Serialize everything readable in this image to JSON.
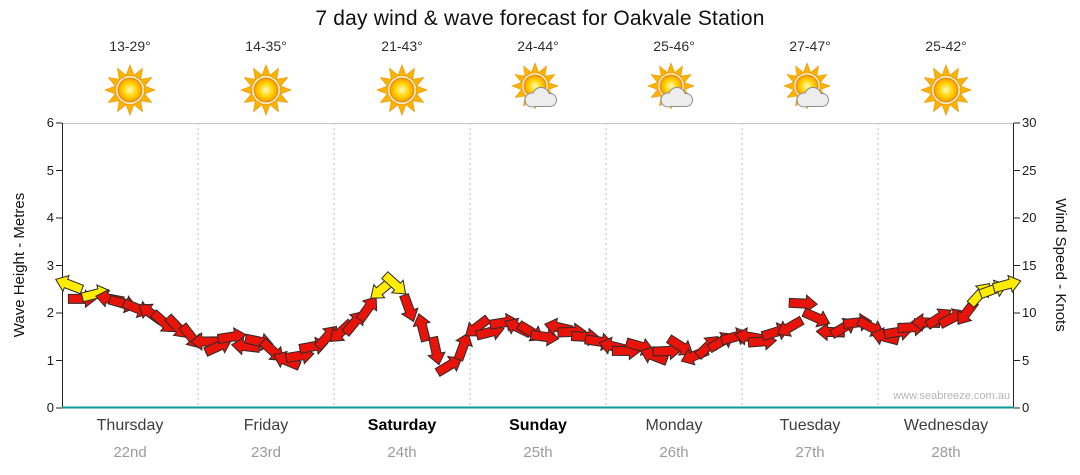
{
  "title": "7 day wind & wave forecast for Oakvale Station",
  "watermark": "www.seabreeze.com.au",
  "axes": {
    "left": {
      "title": "Wave Height - Metres",
      "ticks": [
        0,
        1,
        2,
        3,
        4,
        5,
        6
      ]
    },
    "right": {
      "title": "Wind Speed - Knots",
      "ticks": [
        0,
        5,
        10,
        15,
        20,
        25,
        30
      ]
    }
  },
  "days": [
    {
      "name": "Thursday",
      "date": "22nd",
      "temp": "13-29°",
      "icon": "sunny",
      "weekend": false
    },
    {
      "name": "Friday",
      "date": "23rd",
      "temp": "14-35°",
      "icon": "sunny",
      "weekend": false
    },
    {
      "name": "Saturday",
      "date": "24th",
      "temp": "21-43°",
      "icon": "sunny",
      "weekend": true
    },
    {
      "name": "Sunday",
      "date": "25th",
      "temp": "24-44°",
      "icon": "partly-cloudy",
      "weekend": true
    },
    {
      "name": "Monday",
      "date": "26th",
      "temp": "25-46°",
      "icon": "partly-cloudy",
      "weekend": false
    },
    {
      "name": "Tuesday",
      "date": "27th",
      "temp": "27-47°",
      "icon": "partly-cloudy",
      "weekend": false
    },
    {
      "name": "Wednesday",
      "date": "28th",
      "temp": "25-42°",
      "icon": "sunny",
      "weekend": false
    }
  ],
  "chart_data": {
    "type": "line",
    "marker": "wind-direction-arrow",
    "title": "7 day wind & wave forecast for Oakvale Station",
    "ylabel_left": "Wave Height - Metres",
    "ylabel_right": "Wind Speed - Knots",
    "ylim_left_metres": [
      0,
      6
    ],
    "ylim_right_knots": [
      0,
      30
    ],
    "x_categories": [
      "Thursday 22nd",
      "Friday 23rd",
      "Saturday 24th",
      "Sunday 25th",
      "Monday 26th",
      "Tuesday 27th",
      "Wednesday 28th"
    ],
    "samples_per_day": 10,
    "series": [
      {
        "name": "Wind Speed (knots)",
        "values": [
          13,
          11.5,
          12,
          11.5,
          11,
          10.5,
          10,
          9,
          8.5,
          7.5,
          7,
          6.5,
          7.5,
          6.5,
          7,
          6,
          5,
          5.5,
          6.5,
          7.5,
          8,
          9,
          10.5,
          12.5,
          13,
          10.5,
          8.5,
          6,
          4.5,
          6.5,
          8.5,
          8,
          9,
          8.5,
          8,
          7.5,
          8.5,
          8,
          7.5,
          7,
          6.5,
          6,
          6.5,
          5.5,
          6,
          6.5,
          5.5,
          6.5,
          7,
          7.5,
          7.5,
          7,
          8,
          8.5,
          11,
          9.5,
          8,
          8.5,
          9,
          8.5,
          7.5,
          8,
          8.5,
          9,
          9.5,
          9.5,
          10,
          12,
          12.5,
          13
        ]
      }
    ],
    "arrow_colors": {
      "red": "#e81309",
      "yellow": "#ffec00"
    },
    "yellow_threshold_knots": 12,
    "grid": "vertical dotted lines at day boundaries",
    "legend": "none"
  }
}
